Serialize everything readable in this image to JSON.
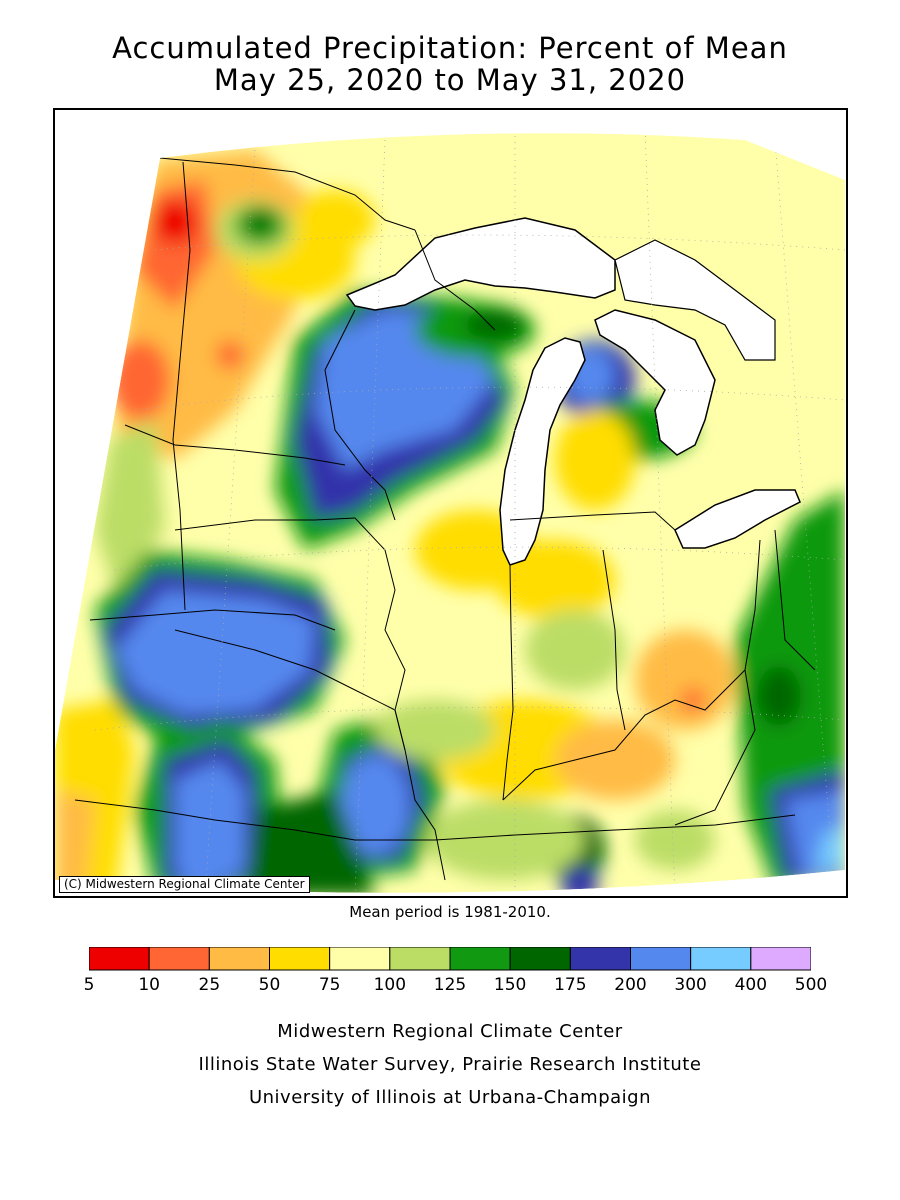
{
  "title": {
    "line1": "Accumulated Precipitation: Percent of Mean",
    "line2": "May 25, 2020 to May 31, 2020"
  },
  "map": {
    "copyright": "(C) Midwestern Regional Climate Center",
    "mean_period_note": "Mean period is 1981-2010.",
    "lake_color": "#ffffff",
    "border_color": "#000000"
  },
  "legend": {
    "labels": [
      "5",
      "10",
      "25",
      "50",
      "75",
      "100",
      "125",
      "150",
      "175",
      "200",
      "300",
      "400",
      "500"
    ],
    "colors": [
      "#ee0000",
      "#ff6633",
      "#ffbb44",
      "#ffdd00",
      "#ffffaa",
      "#bbdd66",
      "#119911",
      "#006600",
      "#3333aa",
      "#5588ee",
      "#77ccff",
      "#ddaaff"
    ]
  },
  "credits": {
    "line1": "Midwestern Regional Climate Center",
    "line2": "Illinois State Water Survey, Prairie Research Institute",
    "line3": "University of Illinois at Urbana-Champaign"
  }
}
